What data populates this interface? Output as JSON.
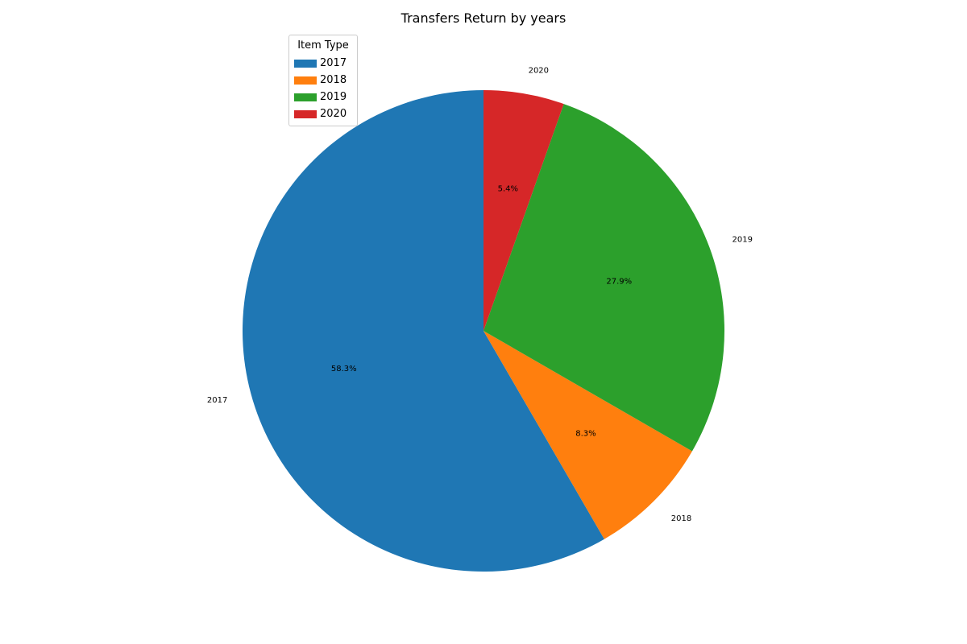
{
  "chart_data": {
    "type": "pie",
    "title": "Transfers Return by years",
    "legend_title": "Item Type",
    "legend_position": "upper-left",
    "start_angle": 90,
    "direction": "counterclockwise",
    "slices": [
      {
        "label": "2017",
        "value": 58.3,
        "pct_label": "58.3%",
        "color": "#1f77b4"
      },
      {
        "label": "2018",
        "value": 8.3,
        "pct_label": "8.3%",
        "color": "#ff7f0e"
      },
      {
        "label": "2019",
        "value": 27.9,
        "pct_label": "27.9%",
        "color": "#2ca02c"
      },
      {
        "label": "2020",
        "value": 5.4,
        "pct_label": "5.4%",
        "color": "#d62728"
      }
    ]
  }
}
